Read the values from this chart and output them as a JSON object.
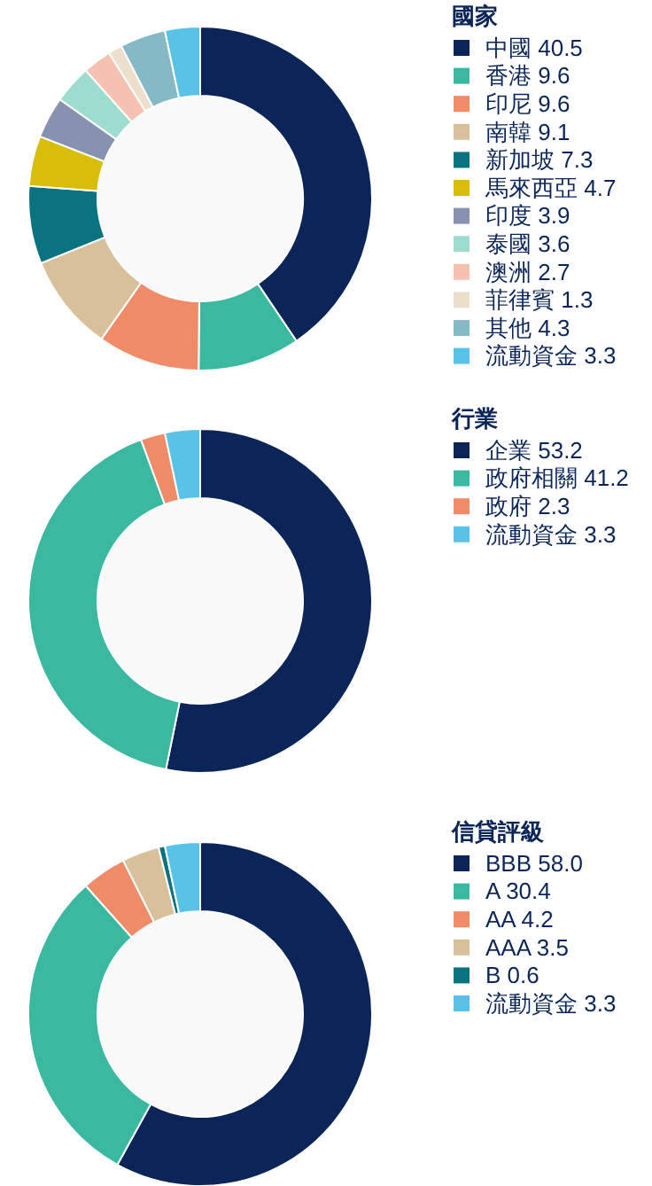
{
  "chart_data": [
    {
      "type": "donut",
      "legend_title": "國家",
      "legend": "right",
      "categories": [
        "中國",
        "香港",
        "印尼",
        "南韓",
        "新加坡",
        "馬來西亞",
        "印度",
        "泰國",
        "澳洲",
        "菲律賓",
        "其他",
        "流動資金"
      ],
      "values": [
        40.5,
        9.6,
        9.6,
        9.1,
        7.3,
        4.7,
        3.9,
        3.6,
        2.7,
        1.3,
        4.3,
        3.3
      ],
      "value_labels": [
        "40.5",
        "9.6",
        "9.6",
        "9.1",
        "7.3",
        "4.7",
        "3.9",
        "3.6",
        "2.7",
        "1.3",
        "4.3",
        "3.3"
      ],
      "colors": [
        "#0b2559",
        "#3bb9a0",
        "#ef8b66",
        "#d8c09a",
        "#0b7280",
        "#d9bd0b",
        "#8792b0",
        "#9edccf",
        "#f5c2b1",
        "#ece0cc",
        "#86b9c6",
        "#58c3e6"
      ]
    },
    {
      "type": "donut",
      "legend_title": "行業",
      "legend": "right",
      "categories": [
        "企業",
        "政府相關",
        "政府",
        "流動資金"
      ],
      "values": [
        53.2,
        41.2,
        2.3,
        3.3
      ],
      "value_labels": [
        "53.2",
        "41.2",
        "2.3",
        "3.3"
      ],
      "colors": [
        "#0b2559",
        "#3bb9a0",
        "#ef8b66",
        "#58c3e6"
      ]
    },
    {
      "type": "donut",
      "legend_title": "信貸評級",
      "legend": "right",
      "categories": [
        "BBB",
        "A",
        "AA",
        "AAA",
        "B",
        "流動資金"
      ],
      "values": [
        58.0,
        30.4,
        4.2,
        3.5,
        0.6,
        3.3
      ],
      "value_labels": [
        "58.0",
        "30.4",
        "4.2",
        "3.5",
        "0.6",
        "3.3"
      ],
      "colors": [
        "#0b2559",
        "#3bb9a0",
        "#ef8b66",
        "#d8c09a",
        "#0b7280",
        "#58c3e6"
      ]
    }
  ]
}
